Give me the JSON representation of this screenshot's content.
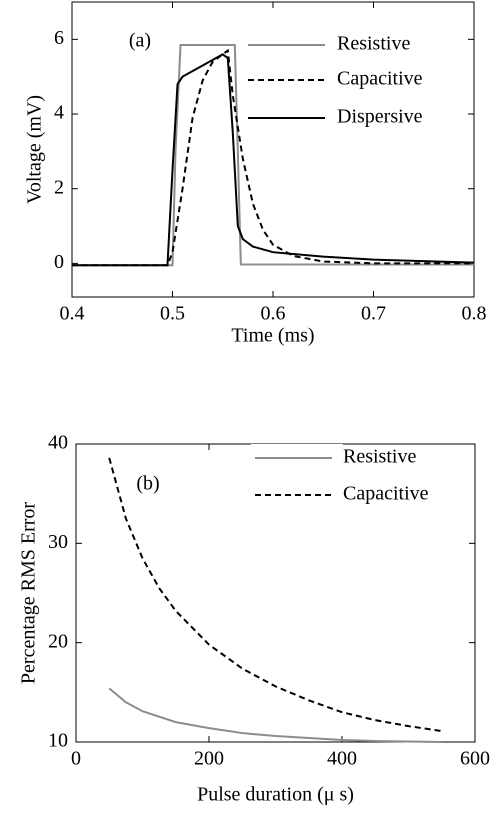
{
  "chart_data": [
    {
      "type": "line",
      "annotation": "(a)",
      "xlabel": "Time (ms)",
      "ylabel": "Voltage (mV)",
      "xlim": [
        0.4,
        0.8
      ],
      "ylim": [
        -0.9,
        7
      ],
      "xticks": [
        0.4,
        0.5,
        0.6,
        0.7,
        0.8
      ],
      "yticks": [
        0,
        2,
        4,
        6
      ],
      "series": [
        {
          "name": "Resistive",
          "color": "#8c8c8c",
          "dash": "none",
          "x": [
            0.4,
            0.5,
            0.503,
            0.508,
            0.562,
            0.565,
            0.568,
            0.6,
            0.8
          ],
          "values": [
            -0.05,
            -0.05,
            3.0,
            5.85,
            5.85,
            3.0,
            -0.03,
            -0.03,
            -0.03
          ]
        },
        {
          "name": "Capacitive",
          "color": "#000000",
          "dash": "6,4",
          "x": [
            0.4,
            0.495,
            0.5,
            0.51,
            0.52,
            0.53,
            0.54,
            0.555,
            0.56,
            0.57,
            0.58,
            0.59,
            0.6,
            0.62,
            0.65,
            0.7,
            0.8
          ],
          "values": [
            -0.05,
            -0.05,
            0.3,
            2.0,
            3.9,
            4.9,
            5.4,
            5.7,
            4.5,
            2.8,
            1.6,
            0.9,
            0.5,
            0.2,
            0.05,
            0.0,
            0.0
          ]
        },
        {
          "name": "Dispersive",
          "color": "#000000",
          "dash": "none",
          "x": [
            0.4,
            0.495,
            0.5,
            0.505,
            0.51,
            0.53,
            0.55,
            0.555,
            0.56,
            0.565,
            0.57,
            0.58,
            0.6,
            0.65,
            0.7,
            0.8
          ],
          "values": [
            -0.05,
            -0.05,
            2.5,
            4.8,
            5.0,
            5.3,
            5.6,
            5.5,
            3.5,
            1.0,
            0.65,
            0.45,
            0.3,
            0.18,
            0.1,
            0.02
          ]
        }
      ]
    },
    {
      "type": "line",
      "annotation": "(b)",
      "xlabel": "Pulse duration (μ s)",
      "ylabel": "Percentage RMS Error",
      "xlim": [
        0,
        600
      ],
      "ylim": [
        10,
        40
      ],
      "xticks": [
        0,
        200,
        400,
        600
      ],
      "yticks": [
        10,
        20,
        30,
        40
      ],
      "series": [
        {
          "name": "Resistive",
          "color": "#8c8c8c",
          "dash": "none",
          "x": [
            50,
            75,
            100,
            150,
            200,
            250,
            300,
            350,
            400,
            450,
            500,
            550
          ],
          "values": [
            15.4,
            14.0,
            13.1,
            12.0,
            11.4,
            10.9,
            10.6,
            10.4,
            10.2,
            10.1,
            10.05,
            10.0
          ]
        },
        {
          "name": "Capacitive",
          "color": "#000000",
          "dash": "6,4",
          "x": [
            50,
            75,
            100,
            125,
            150,
            200,
            250,
            300,
            350,
            400,
            450,
            500,
            550
          ],
          "values": [
            38.6,
            32.5,
            28.5,
            25.5,
            23.2,
            19.8,
            17.4,
            15.6,
            14.2,
            13.0,
            12.2,
            11.6,
            11.1
          ]
        }
      ]
    }
  ]
}
